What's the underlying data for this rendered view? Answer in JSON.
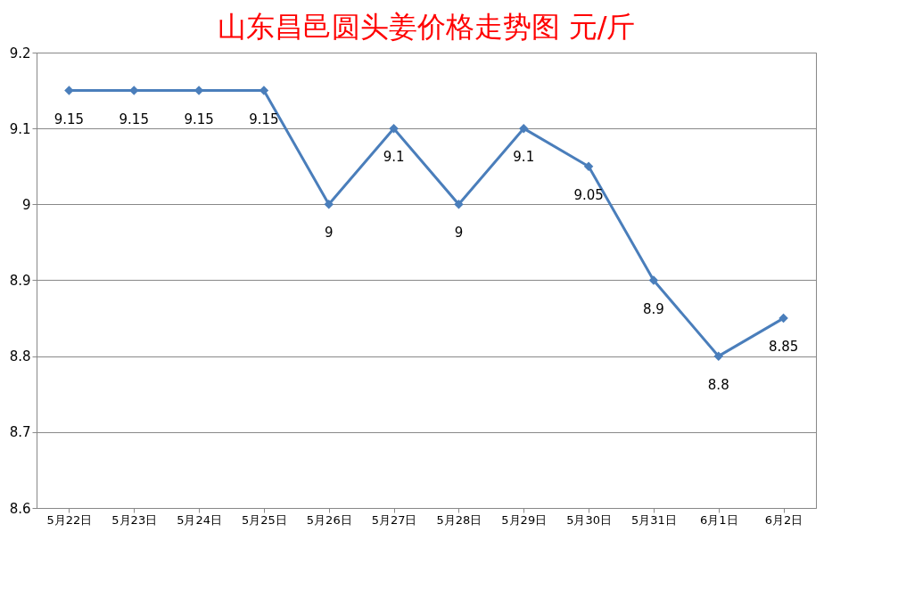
{
  "chart_data": {
    "type": "line",
    "title": "山东昌邑圆头姜价格走势图 元/斤",
    "categories": [
      "5月22日",
      "5月23日",
      "5月24日",
      "5月25日",
      "5月26日",
      "5月27日",
      "5月28日",
      "5月29日",
      "5月30日",
      "5月31日",
      "6月1日",
      "6月2日"
    ],
    "series": [
      {
        "color": "#4a7ebb",
        "values": [
          9.15,
          9.15,
          9.15,
          9.15,
          9,
          9.1,
          9,
          9.1,
          9.05,
          8.9,
          8.8,
          8.85
        ]
      }
    ],
    "ylim": [
      8.6,
      9.2
    ],
    "yticks": [
      8.6,
      8.7,
      8.8,
      8.9,
      9,
      9.1,
      9.2
    ],
    "grid": "y",
    "legend": false,
    "marker": "diamond",
    "line_style": "solid",
    "data_labels": true
  }
}
